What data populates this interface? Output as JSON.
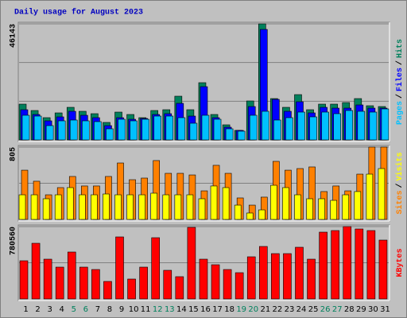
{
  "chart_data": [
    {
      "type": "bar",
      "title": "Daily usage for August 2023",
      "ylim": [
        0,
        46143
      ],
      "yticks": [
        46143
      ],
      "grid": true,
      "legend_separator": "/",
      "series": [
        {
          "name": "Pages",
          "color": "#00c0ff",
          "values": [
            9798,
            9481,
            5689,
            7585,
            7901,
            7585,
            7269,
            4425,
            8217,
            7585,
            8217,
            9481,
            9481,
            8849,
            6637,
            9798,
            8217,
            4425,
            3477,
            9798,
            11378,
            7901,
            8849,
            11062,
            9165,
            11062,
            10430,
            11694,
            11378,
            11062,
            12326
          ]
        },
        {
          "name": "Files",
          "color": "#0000ff",
          "values": [
            12010,
            10114,
            7585,
            9165,
            11378,
            9798,
            8849,
            5689,
            8849,
            8217,
            8533,
            10114,
            10430,
            14538,
            9481,
            21175,
            8849,
            5057,
            3793,
            13274,
            43931,
            16119,
            11378,
            15170,
            10746,
            12958,
            12642,
            12642,
            13906,
            12642,
            12642
          ]
        },
        {
          "name": "Hits",
          "color": "#00805c",
          "values": [
            14222,
            11694,
            8849,
            10746,
            12958,
            11378,
            10430,
            6953,
            11062,
            10114,
            8849,
            11694,
            12010,
            17383,
            12010,
            22756,
            10114,
            6005,
            3793,
            15486,
            46143,
            16435,
            12958,
            18015,
            12010,
            14222,
            14222,
            14854,
            16435,
            13590,
            13274
          ]
        }
      ]
    },
    {
      "type": "bar",
      "ylim": [
        0,
        805
      ],
      "yticks": [
        805
      ],
      "grid": true,
      "legend_separator": "/",
      "series": [
        {
          "name": "Sites",
          "color": "#ff8000",
          "values": [
            548,
            425,
            274,
            354,
            478,
            372,
            372,
            478,
            628,
            442,
            460,
            655,
            513,
            513,
            495,
            318,
            602,
            513,
            239,
            159,
            248,
            646,
            548,
            566,
            584,
            310,
            372,
            318,
            504,
            805,
            805
          ]
        },
        {
          "name": "Visits",
          "color": "#ffff00",
          "values": [
            274,
            274,
            230,
            274,
            354,
            274,
            274,
            283,
            274,
            274,
            274,
            292,
            274,
            274,
            274,
            230,
            372,
            354,
            159,
            71,
            106,
            380,
            354,
            274,
            230,
            230,
            212,
            274,
            310,
            504,
            566
          ]
        }
      ]
    },
    {
      "type": "bar",
      "ylim": [
        0,
        780560
      ],
      "yticks": [
        780560
      ],
      "grid": true,
      "categories": [
        "1",
        "2",
        "3",
        "4",
        "5",
        "6",
        "7",
        "8",
        "9",
        "10",
        "11",
        "12",
        "13",
        "14",
        "15",
        "16",
        "17",
        "18",
        "19",
        "20",
        "21",
        "22",
        "23",
        "24",
        "25",
        "26",
        "27",
        "28",
        "29",
        "30",
        "31"
      ],
      "category_colors": [
        "#000000",
        "#000000",
        "#000000",
        "#000000",
        "#00805c",
        "#00805c",
        "#000000",
        "#000000",
        "#000000",
        "#000000",
        "#000000",
        "#00805c",
        "#00805c",
        "#000000",
        "#000000",
        "#000000",
        "#000000",
        "#000000",
        "#00805c",
        "#00805c",
        "#000000",
        "#000000",
        "#000000",
        "#000000",
        "#000000",
        "#00805c",
        "#00805c",
        "#000000",
        "#000000",
        "#000000",
        "#000000"
      ],
      "series": [
        {
          "name": "KBytes",
          "color": "#ff0000",
          "values": [
            411725,
            600432,
            428880,
            343104,
            506078,
            343104,
            317371,
            188707,
            669053,
            214440,
            343104,
            660475,
            308794,
            240173,
            771982,
            428880,
            368837,
            317371,
            283061,
            454613,
            566122,
            488923,
            488923,
            557544,
            428880,
            720518,
            737674,
            780560,
            754829,
            737674,
            634742
          ]
        }
      ]
    }
  ]
}
